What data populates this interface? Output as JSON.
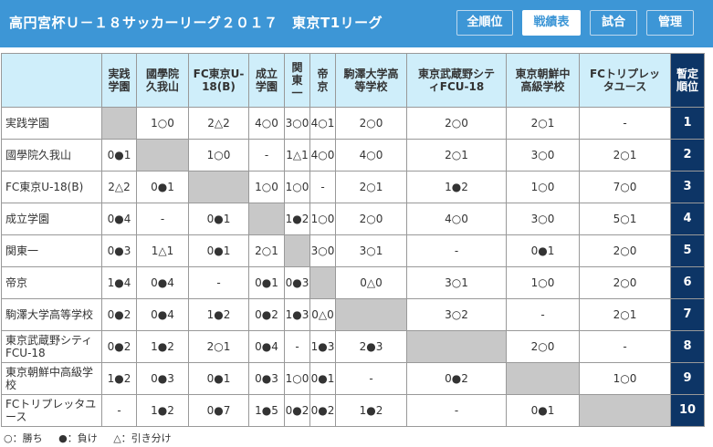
{
  "header": {
    "title": "高円宮杯Ｕ－１８サッカーリーグ２０１７　東京T1リーグ",
    "buttons": [
      {
        "label": "全順位",
        "active": false
      },
      {
        "label": "戦績表",
        "active": true
      },
      {
        "label": "試合",
        "active": false
      },
      {
        "label": "管理",
        "active": false
      }
    ]
  },
  "table": {
    "rank_header": "暫定\n順位",
    "columns": [
      "実践\n学園",
      "國學院\n久我山",
      "FC東京U-\n18(B)",
      "成立\n学園",
      "関\n東\n一",
      "帝\n京",
      "駒澤大学高\n等学校",
      "東京武蔵野シテ\nィFCU-18",
      "東京朝鮮中\n高級学校",
      "FCトリプレッ\nタユース"
    ],
    "rows": [
      {
        "name": "実践学園",
        "rank": "1",
        "cells": [
          "",
          "1○0",
          "2△2",
          "4○0",
          "3○0",
          "4○1",
          "2○0",
          "2○0",
          "2○1",
          "-"
        ]
      },
      {
        "name": "國學院久我山",
        "rank": "2",
        "cells": [
          "0●1",
          "",
          "1○0",
          "-",
          "1△1",
          "4○0",
          "4○0",
          "2○1",
          "3○0",
          "2○1"
        ]
      },
      {
        "name": "FC東京U-18(B)",
        "rank": "3",
        "cells": [
          "2△2",
          "0●1",
          "",
          "1○0",
          "1○0",
          "-",
          "2○1",
          "1●2",
          "1○0",
          "7○0"
        ]
      },
      {
        "name": "成立学園",
        "rank": "4",
        "cells": [
          "0●4",
          "-",
          "0●1",
          "",
          "1●2",
          "1○0",
          "2○0",
          "4○0",
          "3○0",
          "5○1"
        ]
      },
      {
        "name": "関東一",
        "rank": "5",
        "cells": [
          "0●3",
          "1△1",
          "0●1",
          "2○1",
          "",
          "3○0",
          "3○1",
          "-",
          "0●1",
          "2○0"
        ]
      },
      {
        "name": "帝京",
        "rank": "6",
        "cells": [
          "1●4",
          "0●4",
          "-",
          "0●1",
          "0●3",
          "",
          "0△0",
          "3○1",
          "1○0",
          "2○0"
        ]
      },
      {
        "name": "駒澤大学高等学校",
        "rank": "7",
        "cells": [
          "0●2",
          "0●4",
          "1●2",
          "0●2",
          "1●3",
          "0△0",
          "",
          "3○2",
          "-",
          "2○1"
        ]
      },
      {
        "name": "東京武蔵野シティFCU-18",
        "rank": "8",
        "cells": [
          "0●2",
          "1●2",
          "2○1",
          "0●4",
          "-",
          "1●3",
          "2●3",
          "",
          "2○0",
          "-"
        ]
      },
      {
        "name": "東京朝鮮中高級学校",
        "rank": "9",
        "cells": [
          "1●2",
          "0●3",
          "0●1",
          "0●3",
          "1○0",
          "0●1",
          "-",
          "0●2",
          "",
          "1○0"
        ]
      },
      {
        "name": "FCトリプレッタユース",
        "rank": "10",
        "cells": [
          "-",
          "1●2",
          "0●7",
          "1●5",
          "0●2",
          "0●2",
          "1●2",
          "-",
          "0●1",
          ""
        ]
      }
    ]
  },
  "legend": [
    "○：勝ち",
    "●：負け",
    "△：引き分け"
  ]
}
